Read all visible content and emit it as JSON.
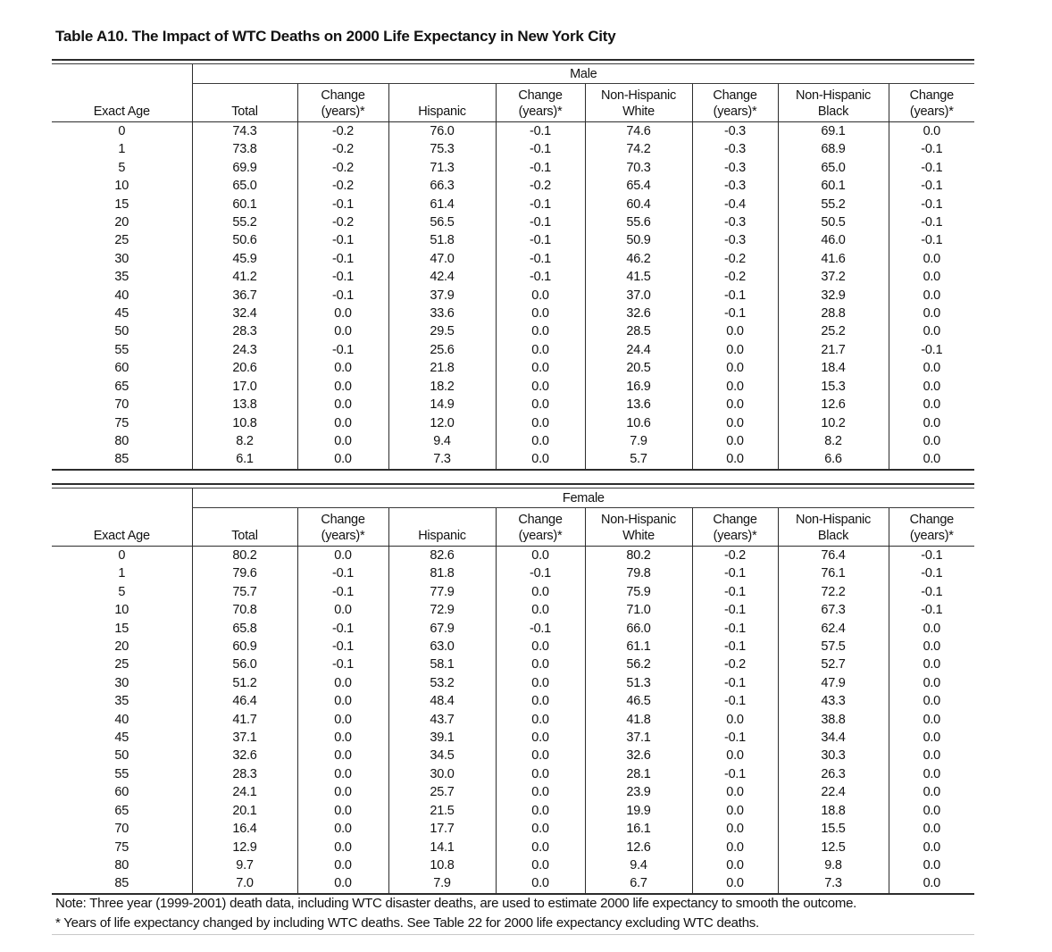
{
  "title": "Table A10. The Impact of WTC Deaths on 2000 Life Expectancy in New York City",
  "headers": [
    {
      "l1": "",
      "l2": "Exact Age"
    },
    {
      "l1": "",
      "l2": "Total"
    },
    {
      "l1": "Change",
      "l2": "(years)*"
    },
    {
      "l1": "",
      "l2": "Hispanic"
    },
    {
      "l1": "Change",
      "l2": "(years)*"
    },
    {
      "l1": "Non-Hispanic",
      "l2": "White"
    },
    {
      "l1": "Change",
      "l2": "(years)*"
    },
    {
      "l1": "Non-Hispanic",
      "l2": "Black"
    },
    {
      "l1": "Change",
      "l2": "(years)*"
    }
  ],
  "tables": [
    {
      "group_label": "Male",
      "rows": [
        [
          "0",
          "74.3",
          "-0.2",
          "76.0",
          "-0.1",
          "74.6",
          "-0.3",
          "69.1",
          "0.0"
        ],
        [
          "1",
          "73.8",
          "-0.2",
          "75.3",
          "-0.1",
          "74.2",
          "-0.3",
          "68.9",
          "-0.1"
        ],
        [
          "5",
          "69.9",
          "-0.2",
          "71.3",
          "-0.1",
          "70.3",
          "-0.3",
          "65.0",
          "-0.1"
        ],
        [
          "10",
          "65.0",
          "-0.2",
          "66.3",
          "-0.2",
          "65.4",
          "-0.3",
          "60.1",
          "-0.1"
        ],
        [
          "15",
          "60.1",
          "-0.1",
          "61.4",
          "-0.1",
          "60.4",
          "-0.4",
          "55.2",
          "-0.1"
        ],
        [
          "20",
          "55.2",
          "-0.2",
          "56.5",
          "-0.1",
          "55.6",
          "-0.3",
          "50.5",
          "-0.1"
        ],
        [
          "25",
          "50.6",
          "-0.1",
          "51.8",
          "-0.1",
          "50.9",
          "-0.3",
          "46.0",
          "-0.1"
        ],
        [
          "30",
          "45.9",
          "-0.1",
          "47.0",
          "-0.1",
          "46.2",
          "-0.2",
          "41.6",
          "0.0"
        ],
        [
          "35",
          "41.2",
          "-0.1",
          "42.4",
          "-0.1",
          "41.5",
          "-0.2",
          "37.2",
          "0.0"
        ],
        [
          "40",
          "36.7",
          "-0.1",
          "37.9",
          "0.0",
          "37.0",
          "-0.1",
          "32.9",
          "0.0"
        ],
        [
          "45",
          "32.4",
          "0.0",
          "33.6",
          "0.0",
          "32.6",
          "-0.1",
          "28.8",
          "0.0"
        ],
        [
          "50",
          "28.3",
          "0.0",
          "29.5",
          "0.0",
          "28.5",
          "0.0",
          "25.2",
          "0.0"
        ],
        [
          "55",
          "24.3",
          "-0.1",
          "25.6",
          "0.0",
          "24.4",
          "0.0",
          "21.7",
          "-0.1"
        ],
        [
          "60",
          "20.6",
          "0.0",
          "21.8",
          "0.0",
          "20.5",
          "0.0",
          "18.4",
          "0.0"
        ],
        [
          "65",
          "17.0",
          "0.0",
          "18.2",
          "0.0",
          "16.9",
          "0.0",
          "15.3",
          "0.0"
        ],
        [
          "70",
          "13.8",
          "0.0",
          "14.9",
          "0.0",
          "13.6",
          "0.0",
          "12.6",
          "0.0"
        ],
        [
          "75",
          "10.8",
          "0.0",
          "12.0",
          "0.0",
          "10.6",
          "0.0",
          "10.2",
          "0.0"
        ],
        [
          "80",
          "8.2",
          "0.0",
          "9.4",
          "0.0",
          "7.9",
          "0.0",
          "8.2",
          "0.0"
        ],
        [
          "85",
          "6.1",
          "0.0",
          "7.3",
          "0.0",
          "5.7",
          "0.0",
          "6.6",
          "0.0"
        ]
      ]
    },
    {
      "group_label": "Female",
      "rows": [
        [
          "0",
          "80.2",
          "0.0",
          "82.6",
          "0.0",
          "80.2",
          "-0.2",
          "76.4",
          "-0.1"
        ],
        [
          "1",
          "79.6",
          "-0.1",
          "81.8",
          "-0.1",
          "79.8",
          "-0.1",
          "76.1",
          "-0.1"
        ],
        [
          "5",
          "75.7",
          "-0.1",
          "77.9",
          "0.0",
          "75.9",
          "-0.1",
          "72.2",
          "-0.1"
        ],
        [
          "10",
          "70.8",
          "0.0",
          "72.9",
          "0.0",
          "71.0",
          "-0.1",
          "67.3",
          "-0.1"
        ],
        [
          "15",
          "65.8",
          "-0.1",
          "67.9",
          "-0.1",
          "66.0",
          "-0.1",
          "62.4",
          "0.0"
        ],
        [
          "20",
          "60.9",
          "-0.1",
          "63.0",
          "0.0",
          "61.1",
          "-0.1",
          "57.5",
          "0.0"
        ],
        [
          "25",
          "56.0",
          "-0.1",
          "58.1",
          "0.0",
          "56.2",
          "-0.2",
          "52.7",
          "0.0"
        ],
        [
          "30",
          "51.2",
          "0.0",
          "53.2",
          "0.0",
          "51.3",
          "-0.1",
          "47.9",
          "0.0"
        ],
        [
          "35",
          "46.4",
          "0.0",
          "48.4",
          "0.0",
          "46.5",
          "-0.1",
          "43.3",
          "0.0"
        ],
        [
          "40",
          "41.7",
          "0.0",
          "43.7",
          "0.0",
          "41.8",
          "0.0",
          "38.8",
          "0.0"
        ],
        [
          "45",
          "37.1",
          "0.0",
          "39.1",
          "0.0",
          "37.1",
          "-0.1",
          "34.4",
          "0.0"
        ],
        [
          "50",
          "32.6",
          "0.0",
          "34.5",
          "0.0",
          "32.6",
          "0.0",
          "30.3",
          "0.0"
        ],
        [
          "55",
          "28.3",
          "0.0",
          "30.0",
          "0.0",
          "28.1",
          "-0.1",
          "26.3",
          "0.0"
        ],
        [
          "60",
          "24.1",
          "0.0",
          "25.7",
          "0.0",
          "23.9",
          "0.0",
          "22.4",
          "0.0"
        ],
        [
          "65",
          "20.1",
          "0.0",
          "21.5",
          "0.0",
          "19.9",
          "0.0",
          "18.8",
          "0.0"
        ],
        [
          "70",
          "16.4",
          "0.0",
          "17.7",
          "0.0",
          "16.1",
          "0.0",
          "15.5",
          "0.0"
        ],
        [
          "75",
          "12.9",
          "0.0",
          "14.1",
          "0.0",
          "12.6",
          "0.0",
          "12.5",
          "0.0"
        ],
        [
          "80",
          "9.7",
          "0.0",
          "10.8",
          "0.0",
          "9.4",
          "0.0",
          "9.8",
          "0.0"
        ],
        [
          "85",
          "7.0",
          "0.0",
          "7.9",
          "0.0",
          "6.7",
          "0.0",
          "7.3",
          "0.0"
        ]
      ]
    }
  ],
  "notes": {
    "line1": "Note: Three year (1999-2001) death data, including WTC disaster deaths, are used to estimate 2000 life expectancy to smooth the outcome.",
    "line2": "* Years of life expectancy changed by including WTC deaths.  See Table 22 for 2000 life expectancy excluding WTC deaths."
  }
}
